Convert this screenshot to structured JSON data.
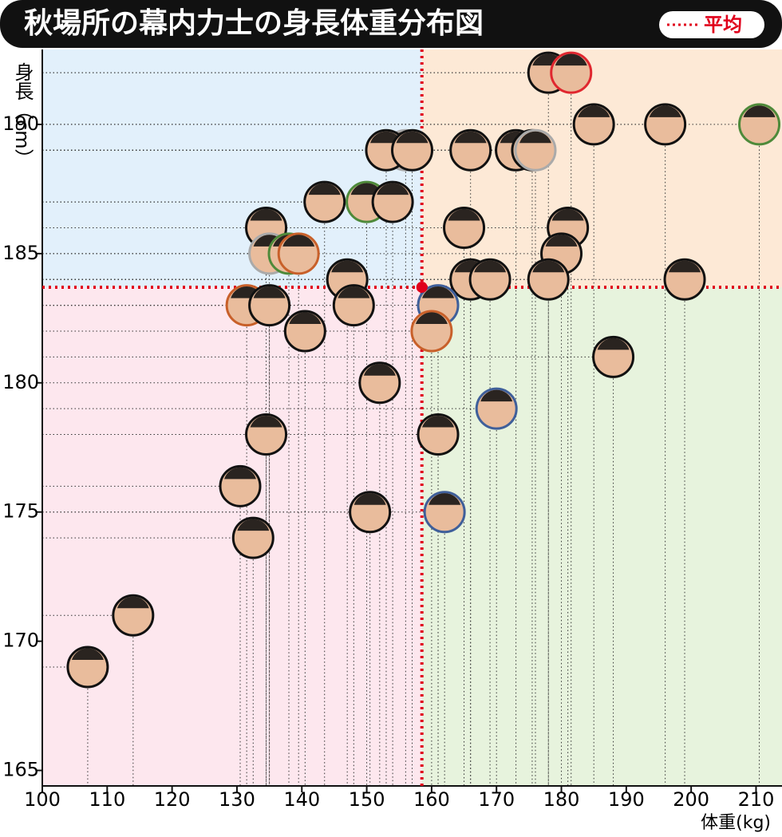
{
  "chart_data": {
    "type": "scatter",
    "title": "秋場所の幕内力士の身長体重分布図",
    "legend_label": "平均",
    "y_label": "身長（cm）",
    "x_label": "体重(kg)",
    "x": [
      178,
      181.5,
      156,
      153,
      157,
      166,
      173,
      175.5,
      176,
      185,
      196,
      210.5,
      143.5,
      150,
      154,
      134.5,
      165,
      181,
      180,
      135,
      138,
      139.5,
      147,
      166,
      169,
      178,
      199,
      131.5,
      135,
      148,
      161,
      140.5,
      160,
      188,
      152,
      170,
      134.5,
      161,
      130.5,
      150.5,
      162,
      132.5,
      114,
      107
    ],
    "values": [
      192,
      192,
      189,
      189,
      189,
      189,
      189,
      189,
      189,
      190,
      190,
      190,
      187,
      187,
      187,
      186,
      186,
      186,
      185,
      185,
      185,
      185,
      184,
      184,
      184,
      184,
      184,
      183,
      183,
      183,
      183,
      182,
      182,
      181,
      180,
      179,
      178,
      178,
      176,
      175,
      175,
      174,
      171,
      169
    ],
    "border_colors": [
      "#111",
      "#e0272f",
      "#aaa",
      "#111",
      "#111",
      "#111",
      "#111",
      "#111",
      "#aaa",
      "#111",
      "#111",
      "#4e8a3a",
      "#111",
      "#4e8a3a",
      "#111",
      "#111",
      "#111",
      "#111",
      "#111",
      "#aaa",
      "#4e8a3a",
      "#c8602a",
      "#111",
      "#111",
      "#111",
      "#111",
      "#111",
      "#c8602a",
      "#111",
      "#111",
      "#3f5f9a",
      "#111",
      "#c8602a",
      "#111",
      "#111",
      "#3f5f9a",
      "#111",
      "#111",
      "#111",
      "#111",
      "#3f5f9a",
      "#111",
      "#111",
      "#111"
    ],
    "average": {
      "x": 158.5,
      "y": 183.7
    },
    "average_color": "#e0001b",
    "quadrant_colors": {
      "top_left": "#e2f0fb",
      "top_right": "#fde9d6",
      "bottom_left": "#fde7ee",
      "bottom_right": "#e7f3dd"
    },
    "xlim": [
      100,
      214
    ],
    "ylim": [
      164.4,
      192.9
    ],
    "xticks": [
      100,
      110,
      120,
      130,
      140,
      150,
      160,
      170,
      180,
      190,
      200,
      210
    ],
    "yticks": [
      165,
      170,
      175,
      180,
      185,
      190
    ]
  }
}
